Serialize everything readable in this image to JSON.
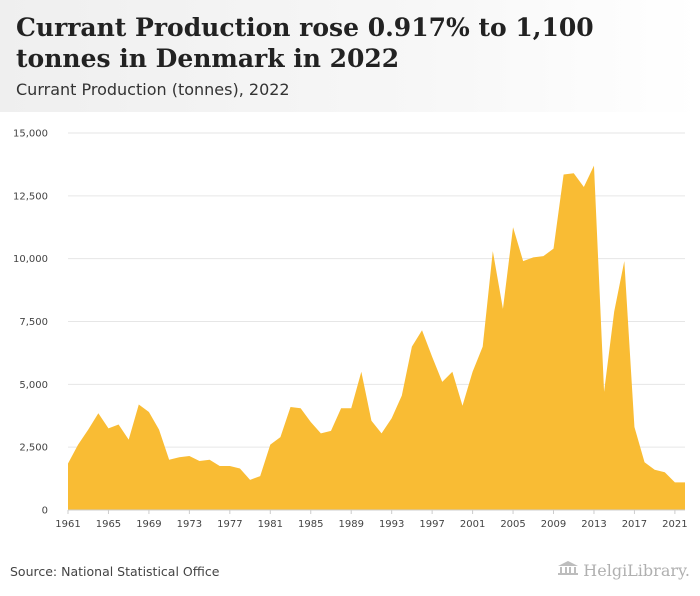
{
  "header": {
    "title": "Currant Production rose 0.917% to 1,100 tonnes in Denmark in 2022",
    "subtitle": "Currant Production (tonnes), 2022"
  },
  "footer": {
    "source": "Source: National Statistical Office",
    "logo_text": "HelgiLibrary."
  },
  "colors": {
    "area": "#F9BC34",
    "grid": "#e6e6e6"
  },
  "chart_data": {
    "type": "area",
    "x": [
      1961,
      1962,
      1963,
      1964,
      1965,
      1966,
      1967,
      1968,
      1969,
      1970,
      1971,
      1972,
      1973,
      1974,
      1975,
      1976,
      1977,
      1978,
      1979,
      1980,
      1981,
      1982,
      1983,
      1984,
      1985,
      1986,
      1987,
      1988,
      1989,
      1990,
      1991,
      1992,
      1993,
      1994,
      1995,
      1996,
      1997,
      1998,
      1999,
      2000,
      2001,
      2002,
      2003,
      2004,
      2005,
      2006,
      2007,
      2008,
      2009,
      2010,
      2011,
      2012,
      2013,
      2014,
      2015,
      2016,
      2017,
      2018,
      2019,
      2020,
      2021,
      2022
    ],
    "values": [
      1850,
      2600,
      3200,
      3850,
      3250,
      3400,
      2800,
      4200,
      3900,
      3200,
      2000,
      2100,
      2150,
      1950,
      2000,
      1750,
      1750,
      1650,
      1200,
      1350,
      2600,
      2900,
      4100,
      4050,
      3500,
      3050,
      3150,
      4050,
      4050,
      5500,
      3550,
      3050,
      3650,
      4550,
      6500,
      7150,
      6100,
      5100,
      5500,
      4150,
      5500,
      6500,
      10300,
      8000,
      11250,
      9900,
      10050,
      10100,
      10400,
      13350,
      13400,
      12850,
      13700,
      4700,
      7900,
      9900,
      3300,
      1900,
      1600,
      1500,
      1100,
      1100
    ],
    "xticks": [
      "1961",
      "1965",
      "1969",
      "1973",
      "1977",
      "1981",
      "1985",
      "1989",
      "1993",
      "1997",
      "2001",
      "2005",
      "2009",
      "2013",
      "2017",
      "2021"
    ],
    "yticks": [
      "0",
      "2,500",
      "5,000",
      "7,500",
      "10,000",
      "12,500",
      "15,000"
    ],
    "ylim": [
      0,
      15000
    ],
    "grid": true
  }
}
